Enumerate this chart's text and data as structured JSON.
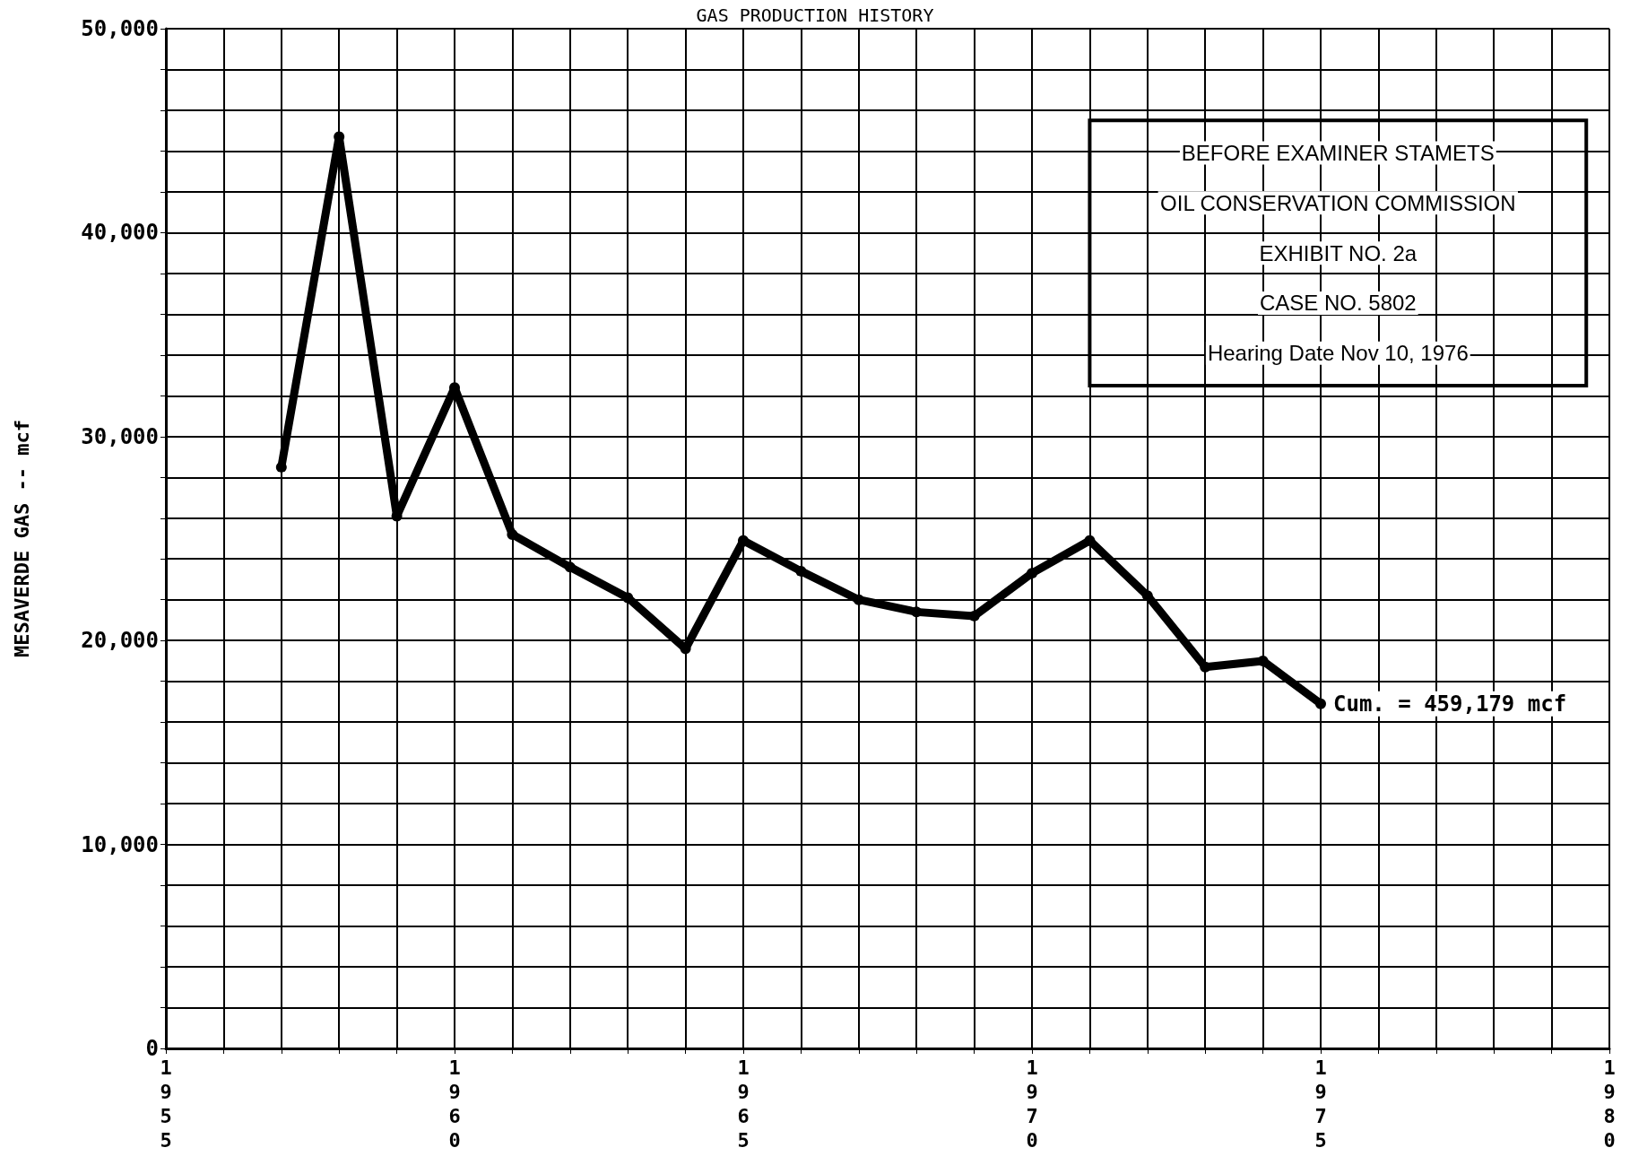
{
  "chart_data": {
    "type": "line",
    "title": "GAS PRODUCTION HISTORY",
    "ylabel": "MESAVERDE GAS -- mcf",
    "x": [
      1957,
      1958,
      1959,
      1960,
      1961,
      1962,
      1963,
      1964,
      1965,
      1966,
      1967,
      1968,
      1969,
      1970,
      1971,
      1972,
      1973,
      1974,
      1975
    ],
    "series": [
      {
        "color": "#000000",
        "values": [
          28500,
          44700,
          26100,
          32400,
          25200,
          23600,
          22100,
          19600,
          24900,
          23400,
          22000,
          21400,
          21200,
          23300,
          24900,
          22200,
          18700,
          19000,
          16900
        ]
      }
    ],
    "xlim": [
      1955,
      1980
    ],
    "xticks": [
      1955,
      {
        "value": 1956,
        "label": null
      },
      {
        "value": 1957,
        "label": null
      },
      {
        "value": 1958,
        "label": null
      },
      {
        "value": 1959,
        "label": null
      },
      1960,
      {
        "value": 1961,
        "label": null
      },
      {
        "value": 1962,
        "label": null
      },
      {
        "value": 1963,
        "label": null
      },
      {
        "value": 1964,
        "label": null
      },
      1965,
      {
        "value": 1966,
        "label": null
      },
      {
        "value": 1967,
        "label": null
      },
      {
        "value": 1968,
        "label": null
      },
      {
        "value": 1969,
        "label": null
      },
      1970,
      {
        "value": 1971,
        "label": null
      },
      {
        "value": 1972,
        "label": null
      },
      {
        "value": 1973,
        "label": null
      },
      {
        "value": 1974,
        "label": null
      },
      1975,
      {
        "value": 1976,
        "label": null
      },
      {
        "value": 1977,
        "label": null
      },
      {
        "value": 1978,
        "label": null
      },
      {
        "value": 1979,
        "label": null
      },
      1980
    ],
    "ylim": [
      0,
      50000
    ],
    "yticks": [
      0,
      {
        "value": 2000,
        "label": null
      },
      {
        "value": 4000,
        "label": null
      },
      {
        "value": 6000,
        "label": null
      },
      {
        "value": 8000,
        "label": null
      },
      {
        "value": 10000,
        "label": "10,000"
      },
      {
        "value": 12000,
        "label": null
      },
      {
        "value": 14000,
        "label": null
      },
      {
        "value": 16000,
        "label": null
      },
      {
        "value": 18000,
        "label": null
      },
      {
        "value": 20000,
        "label": "20,000"
      },
      {
        "value": 22000,
        "label": null
      },
      {
        "value": 24000,
        "label": null
      },
      {
        "value": 26000,
        "label": null
      },
      {
        "value": 28000,
        "label": null
      },
      {
        "value": 30000,
        "label": "30,000"
      },
      {
        "value": 32000,
        "label": null
      },
      {
        "value": 34000,
        "label": null
      },
      {
        "value": 36000,
        "label": null
      },
      {
        "value": 38000,
        "label": null
      },
      {
        "value": 40000,
        "label": "40,000"
      },
      {
        "value": 42000,
        "label": null
      },
      {
        "value": 44000,
        "label": null
      },
      {
        "value": 46000,
        "label": null
      },
      {
        "value": 48000,
        "label": null
      },
      {
        "value": 50000,
        "label": "50,000"
      }
    ],
    "grid": true,
    "marker": "circle",
    "line_style": "solid",
    "annotations": [
      {
        "text": "Cum. = 459,179 mcf",
        "x": 1975,
        "y": 16900
      },
      "BEFORE EXAMINER STAMETS",
      "OIL CONSERVATION COMMISSION",
      "EXHIBIT NO. 2a",
      "CASE NO. 5802",
      "Hearing Date Nov 10, 1976"
    ]
  }
}
